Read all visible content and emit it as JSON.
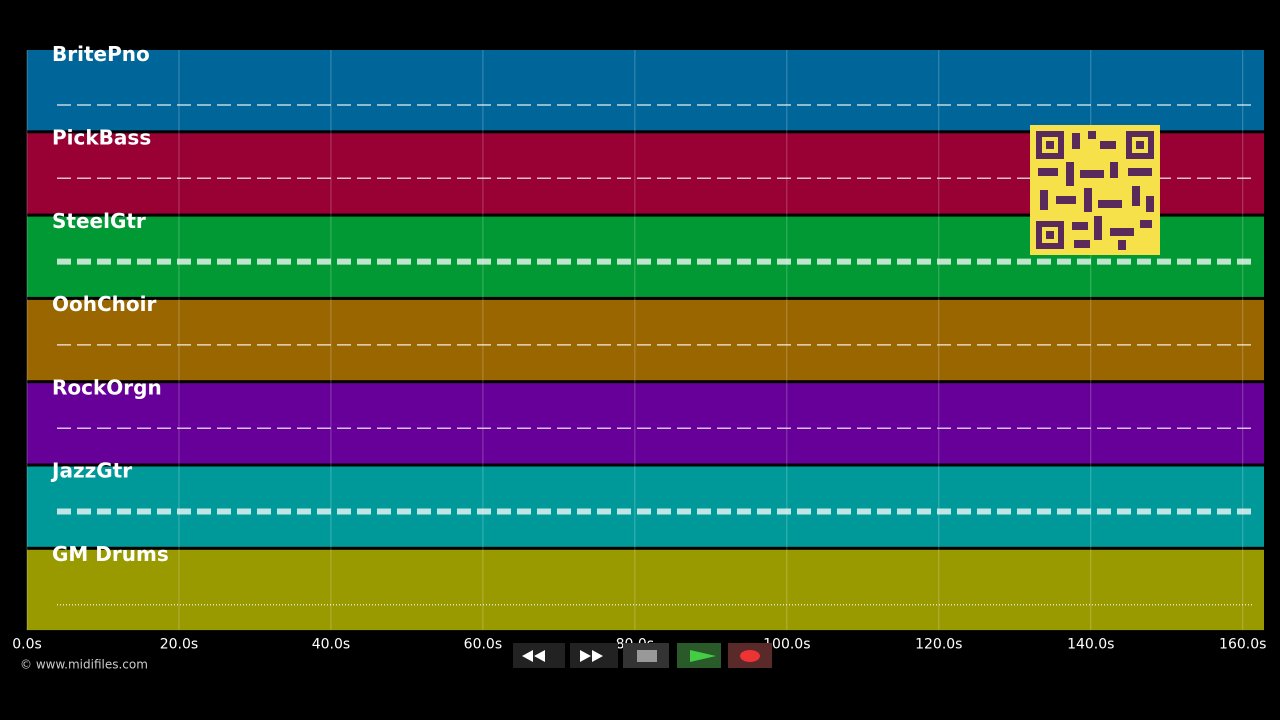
{
  "tracks": [
    {
      "name": "BritePno",
      "color": "#006699"
    },
    {
      "name": "PickBass",
      "color": "#990033"
    },
    {
      "name": "SteelGtr",
      "color": "#009933"
    },
    {
      "name": "OohChoir",
      "color": "#996600"
    },
    {
      "name": "RockOrgn",
      "color": "#660099"
    },
    {
      "name": "JazzGtr",
      "color": "#009999"
    },
    {
      "name": "GM Drums",
      "color": "#999900"
    }
  ],
  "axis": {
    "xlim": [
      0,
      162.8
    ],
    "xticks": [
      {
        "value": 0,
        "label": "0.0s"
      },
      {
        "value": 20,
        "label": "20.0s"
      },
      {
        "value": 40,
        "label": "40.0s"
      },
      {
        "value": 60,
        "label": "60.0s"
      },
      {
        "value": 80,
        "label": "80.0s"
      },
      {
        "value": 100,
        "label": "100.0s"
      },
      {
        "value": 120,
        "label": "120.0s"
      },
      {
        "value": 140,
        "label": "140.0s"
      },
      {
        "value": 160,
        "label": "160.0s"
      }
    ]
  },
  "footer": {
    "credit": "© www.midifiles.com"
  }
}
